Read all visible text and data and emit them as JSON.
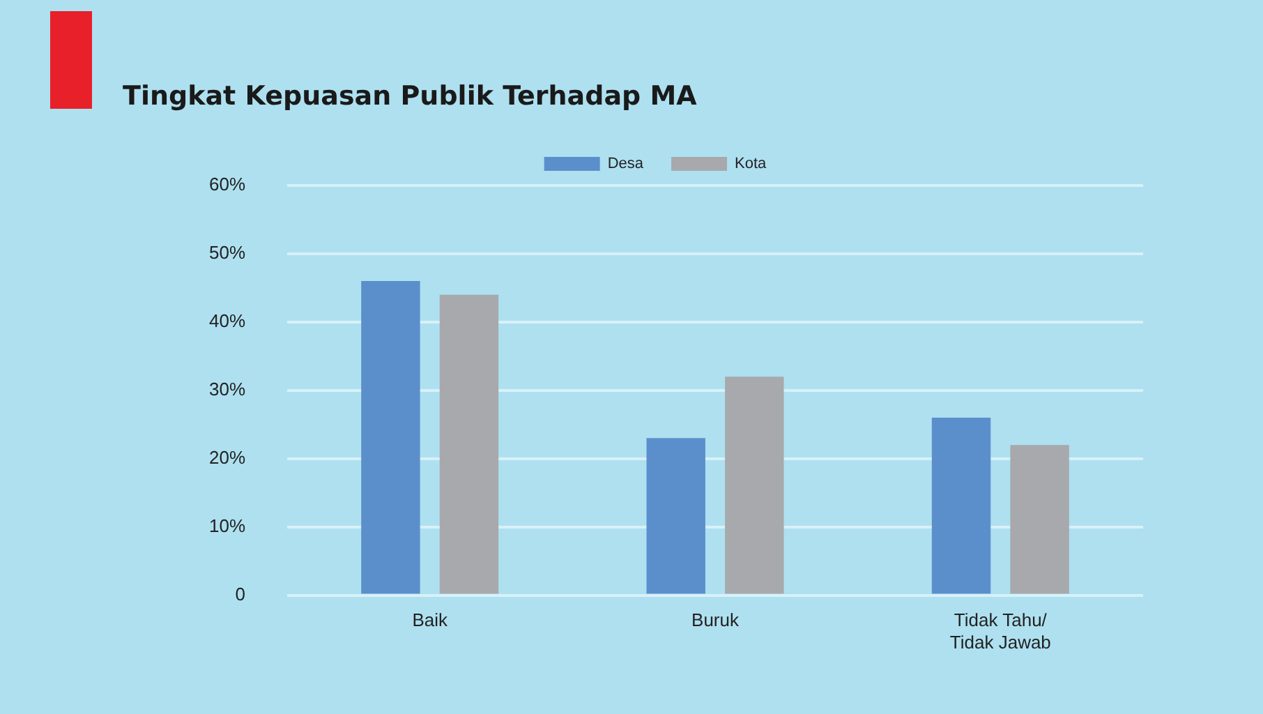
{
  "chart_data": {
    "type": "bar",
    "title": "Tingkat Kepuasan Publik Terhadap MA",
    "categories": [
      "Baik",
      "Buruk",
      "Tidak Tahu/\nTidak Jawab"
    ],
    "series": [
      {
        "name": "Desa",
        "color": "#5b8fcc",
        "values": [
          46,
          23,
          26
        ]
      },
      {
        "name": "Kota",
        "color": "#a7a9ac",
        "values": [
          44,
          32,
          22
        ]
      }
    ],
    "ylim": [
      0,
      60
    ],
    "yticks": [
      {
        "value": 0,
        "label": "0"
      },
      {
        "value": 10,
        "label": "10%"
      },
      {
        "value": 20,
        "label": "20%"
      },
      {
        "value": 30,
        "label": "30%"
      },
      {
        "value": 40,
        "label": "40%"
      },
      {
        "value": 50,
        "label": "50%"
      },
      {
        "value": 60,
        "label": "60%"
      }
    ],
    "grid": "y",
    "legend": "top"
  }
}
